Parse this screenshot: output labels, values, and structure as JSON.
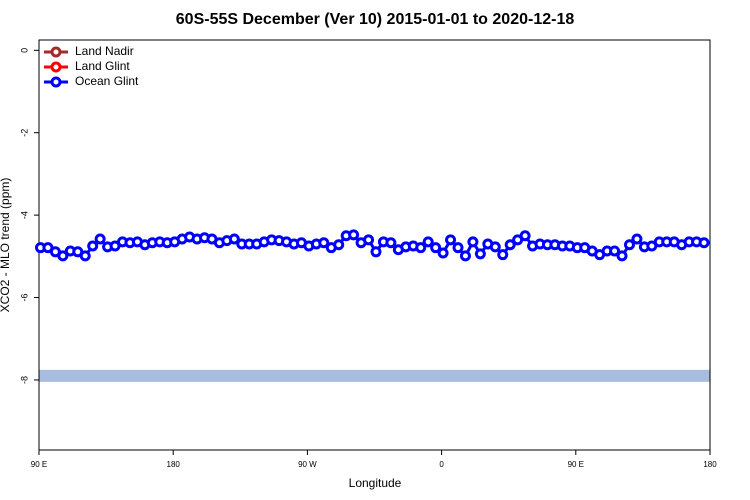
{
  "chart_data": {
    "type": "line",
    "title": "60S-55S December (Ver 10)   2015-01-01 to 2020-12-18",
    "xlabel": "Longitude",
    "ylabel": "XCO2 - MLO trend (ppm)",
    "xlim": [
      90,
      540
    ],
    "xticks": [
      {
        "value": 90,
        "label": "90 E"
      },
      180,
      {
        "value": 270,
        "label": "90 W"
      },
      {
        "value": 360,
        "label": "0"
      },
      {
        "value": 450,
        "label": "90 E"
      },
      {
        "value": 540,
        "label": "180"
      }
    ],
    "ylim": [
      -9.7,
      0.25
    ],
    "yticks": [
      0,
      -2,
      -4,
      -6,
      -8
    ],
    "legend": "upper left",
    "band": {
      "value": -7.9,
      "color": "#a7bcdf"
    },
    "x": [
      91,
      96,
      101,
      106,
      111,
      116,
      121,
      126,
      131,
      136,
      141,
      146,
      151,
      156,
      161,
      166,
      171,
      176,
      181,
      186,
      191,
      196,
      201,
      206,
      211,
      216,
      221,
      226,
      231,
      236,
      241,
      246,
      251,
      256,
      261,
      266,
      271,
      276,
      281,
      286,
      291,
      296,
      301,
      306,
      311,
      316,
      321,
      326,
      331,
      336,
      341,
      346,
      351,
      356,
      361,
      366,
      371,
      376,
      381,
      386,
      391,
      396,
      401,
      406,
      411,
      416,
      421,
      426,
      431,
      436,
      441,
      446,
      451,
      456,
      461,
      466,
      471,
      476,
      481,
      486,
      491,
      496,
      501,
      506,
      511,
      516,
      521,
      526,
      531,
      536
    ],
    "series": [
      {
        "name": "Land Nadir",
        "color": "#a52a2a",
        "values": [
          null,
          null,
          null,
          null,
          null,
          null,
          null,
          null,
          null,
          null,
          null,
          null,
          null,
          null,
          null,
          null,
          null,
          null,
          null,
          null,
          null,
          null,
          null,
          null,
          null,
          null,
          null,
          null,
          null,
          null,
          null,
          null,
          null,
          null,
          null,
          null,
          null,
          null,
          null,
          null,
          null,
          null,
          null,
          null,
          null,
          null,
          null,
          null,
          null,
          null,
          null,
          null,
          null,
          null,
          null,
          null,
          null,
          null,
          null,
          null,
          null,
          null,
          null,
          null,
          null,
          null,
          null,
          null,
          null,
          null,
          null,
          null,
          null,
          null,
          null,
          null,
          null,
          null,
          null,
          null,
          null,
          null,
          null,
          null,
          null,
          null,
          null,
          null,
          null,
          null
        ]
      },
      {
        "name": "Land Glint",
        "color": "#ff0000",
        "values": [
          null,
          null,
          null,
          null,
          null,
          null,
          null,
          null,
          null,
          null,
          null,
          null,
          null,
          null,
          null,
          null,
          null,
          null,
          null,
          null,
          null,
          null,
          null,
          null,
          null,
          null,
          null,
          null,
          null,
          null,
          null,
          null,
          null,
          null,
          null,
          null,
          null,
          null,
          null,
          null,
          null,
          null,
          null,
          null,
          null,
          null,
          null,
          null,
          null,
          null,
          null,
          null,
          null,
          null,
          null,
          null,
          null,
          null,
          null,
          null,
          null,
          null,
          null,
          null,
          null,
          null,
          null,
          null,
          null,
          null,
          null,
          null,
          null,
          null,
          null,
          null,
          null,
          null,
          null,
          null,
          null,
          null,
          null,
          null,
          null,
          null,
          null,
          null,
          null,
          null
        ]
      },
      {
        "name": "Ocean Glint",
        "color": "#0000ff",
        "values": [
          -4.79,
          -4.79,
          -4.89,
          -4.99,
          -4.87,
          -4.89,
          -4.99,
          -4.75,
          -4.58,
          -4.77,
          -4.75,
          -4.65,
          -4.67,
          -4.65,
          -4.72,
          -4.67,
          -4.65,
          -4.67,
          -4.65,
          -4.58,
          -4.53,
          -4.58,
          -4.55,
          -4.58,
          -4.67,
          -4.62,
          -4.58,
          -4.7,
          -4.7,
          -4.7,
          -4.65,
          -4.6,
          -4.62,
          -4.65,
          -4.7,
          -4.67,
          -4.75,
          -4.7,
          -4.67,
          -4.79,
          -4.72,
          -4.5,
          -4.48,
          -4.67,
          -4.6,
          -4.89,
          -4.65,
          -4.67,
          -4.84,
          -4.77,
          -4.75,
          -4.79,
          -4.65,
          -4.79,
          -4.92,
          -4.6,
          -4.79,
          -4.99,
          -4.65,
          -4.94,
          -4.7,
          -4.77,
          -4.96,
          -4.72,
          -4.6,
          -4.5,
          -4.75,
          -4.7,
          -4.72,
          -4.72,
          -4.75,
          -4.75,
          -4.79,
          -4.79,
          -4.87,
          -4.96,
          -4.87,
          -4.87,
          -4.99,
          -4.72,
          -4.58,
          -4.77,
          -4.75,
          -4.65,
          -4.65,
          -4.65,
          -4.72,
          -4.65,
          -4.65,
          -4.67
        ]
      }
    ]
  }
}
